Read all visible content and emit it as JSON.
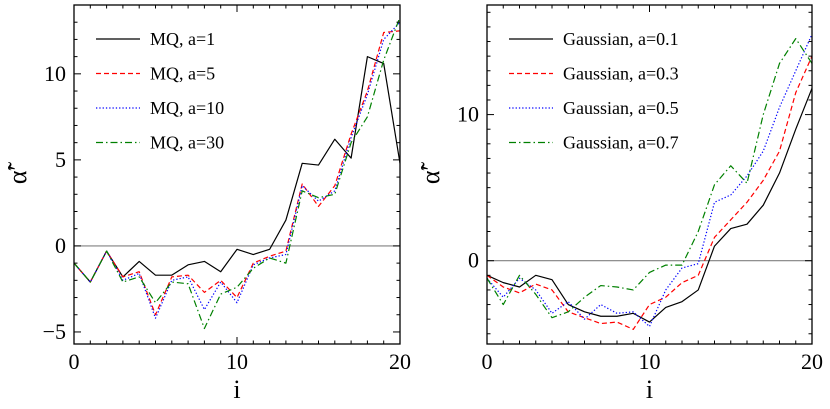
{
  "chart_data": [
    {
      "type": "line",
      "xlabel": "i",
      "ylabel": "α̃′",
      "xlim": [
        0,
        20
      ],
      "ylim": [
        -5.7,
        14
      ],
      "xticks": [
        0,
        10,
        20
      ],
      "yticks": [
        -5,
        0,
        5,
        10
      ],
      "hline": 0,
      "legend_position": "upper-left",
      "x": [
        0,
        1,
        2,
        3,
        4,
        5,
        6,
        7,
        8,
        9,
        10,
        11,
        12,
        13,
        14,
        15,
        16,
        17,
        18,
        19,
        20
      ],
      "series": [
        {
          "name": "MQ, a=1",
          "color": "#000000",
          "dash": "solid",
          "values": [
            -1.0,
            -2.1,
            -0.3,
            -1.8,
            -0.9,
            -1.7,
            -1.7,
            -1.1,
            -0.9,
            -1.5,
            -0.2,
            -0.5,
            -0.2,
            1.5,
            4.8,
            4.7,
            6.2,
            5.1,
            11.0,
            10.6,
            4.8
          ]
        },
        {
          "name": "MQ, a=5",
          "color": "#ff0000",
          "dash": "dashed",
          "values": [
            -1.0,
            -2.1,
            -0.3,
            -1.8,
            -1.5,
            -4.0,
            -1.8,
            -1.7,
            -2.7,
            -2.0,
            -3.0,
            -1.0,
            -0.6,
            -0.3,
            3.6,
            2.3,
            3.5,
            6.5,
            9.0,
            12.4,
            12.5
          ]
        },
        {
          "name": "MQ, a=10",
          "color": "#0000ff",
          "dash": "dotted",
          "values": [
            -1.0,
            -2.1,
            -0.3,
            -2.0,
            -1.6,
            -4.2,
            -2.0,
            -1.8,
            -3.7,
            -2.1,
            -3.3,
            -1.1,
            -0.7,
            -0.5,
            3.5,
            2.6,
            3.2,
            6.3,
            8.8,
            12.0,
            13.0
          ]
        },
        {
          "name": "MQ, a=30",
          "color": "#008000",
          "dash": "dashdot",
          "values": [
            -1.0,
            -2.1,
            -0.3,
            -2.1,
            -1.8,
            -3.3,
            -2.1,
            -2.2,
            -4.8,
            -2.8,
            -2.4,
            -1.3,
            -0.7,
            -1.0,
            3.2,
            2.8,
            3.0,
            6.0,
            7.5,
            10.8,
            13.3
          ]
        }
      ]
    },
    {
      "type": "line",
      "xlabel": "i",
      "ylabel": "α̃′",
      "xlim": [
        0,
        20
      ],
      "ylim": [
        -5.7,
        17.5
      ],
      "xticks": [
        0,
        10,
        20
      ],
      "yticks": [
        0,
        10
      ],
      "hline": 0,
      "legend_position": "upper-left",
      "x": [
        0,
        1,
        2,
        3,
        4,
        5,
        6,
        7,
        8,
        9,
        10,
        11,
        12,
        13,
        14,
        15,
        16,
        17,
        18,
        19,
        20
      ],
      "series": [
        {
          "name": "Gaussian, a=0.1",
          "color": "#000000",
          "dash": "solid",
          "values": [
            -1.0,
            -1.5,
            -1.8,
            -1.0,
            -1.3,
            -3.0,
            -3.5,
            -3.8,
            -3.8,
            -3.6,
            -4.2,
            -3.2,
            -2.8,
            -2.0,
            1.0,
            2.2,
            2.5,
            3.8,
            6.0,
            9.0,
            11.8
          ]
        },
        {
          "name": "Gaussian, a=0.3",
          "color": "#ff0000",
          "dash": "dashed",
          "values": [
            -1.0,
            -1.8,
            -2.2,
            -1.6,
            -2.0,
            -3.5,
            -3.9,
            -4.3,
            -4.2,
            -4.7,
            -3.0,
            -2.5,
            -1.5,
            -1.0,
            1.6,
            2.8,
            4.0,
            5.5,
            7.5,
            11.5,
            14.0
          ]
        },
        {
          "name": "Gaussian, a=0.5",
          "color": "#0000ff",
          "dash": "dotted",
          "values": [
            -1.2,
            -2.5,
            -1.2,
            -2.0,
            -3.6,
            -2.8,
            -4.0,
            -3.0,
            -3.6,
            -3.5,
            -4.5,
            -2.0,
            -0.5,
            -0.2,
            4.0,
            4.5,
            5.8,
            7.5,
            10.5,
            13.0,
            15.5
          ]
        },
        {
          "name": "Gaussian, a=0.7",
          "color": "#008000",
          "dash": "dashdot",
          "values": [
            -1.2,
            -3.0,
            -1.0,
            -2.3,
            -3.9,
            -3.5,
            -2.5,
            -1.7,
            -1.8,
            -2.0,
            -0.8,
            -0.3,
            -0.3,
            2.0,
            5.2,
            6.5,
            5.3,
            10.0,
            13.5,
            15.2,
            13.5
          ]
        }
      ]
    }
  ]
}
